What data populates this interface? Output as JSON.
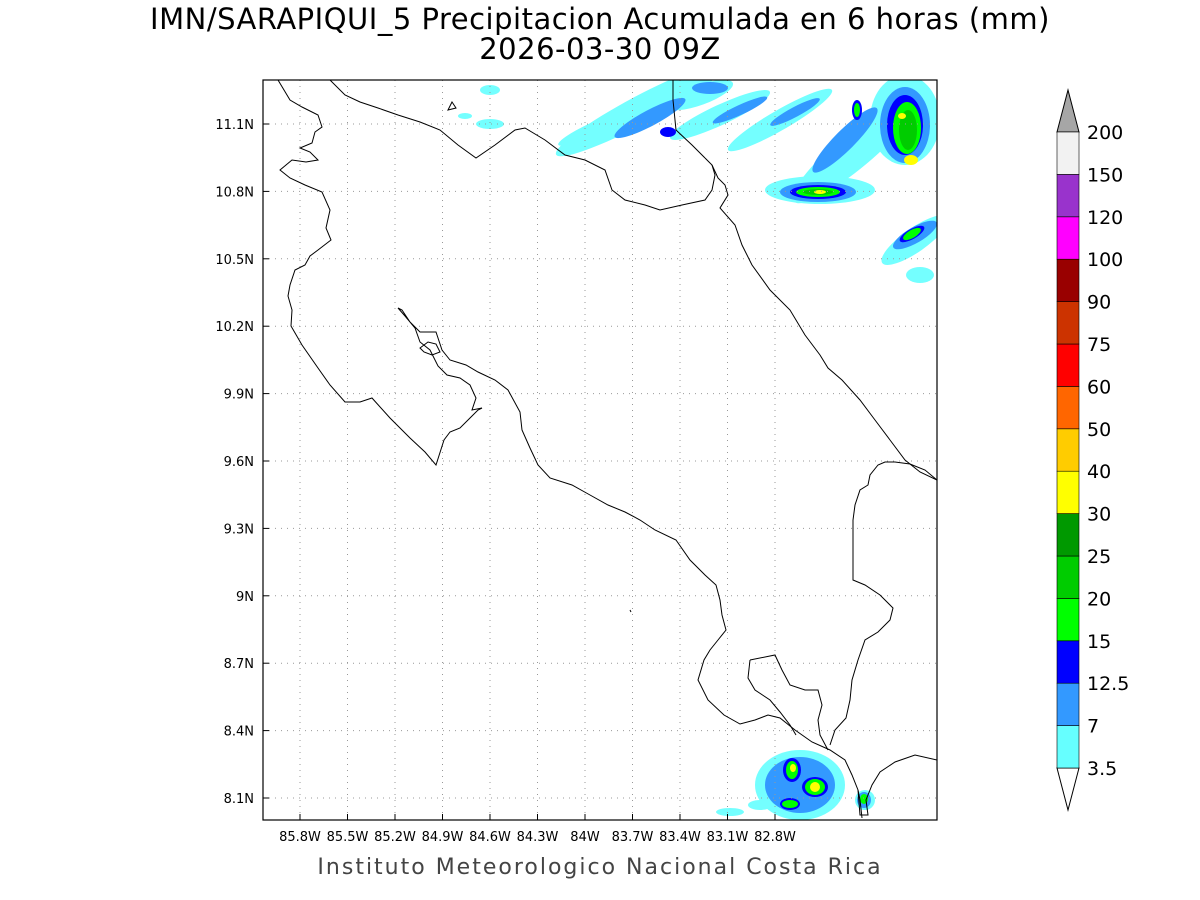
{
  "header": {
    "title": "IMN/SARAPIQUI_5 Precipitacion Acumulada en 6 horas (mm)",
    "datetime": "2026-03-30 09Z"
  },
  "map": {
    "lat_labels": [
      "11.1N",
      "10.8N",
      "10.5N",
      "10.2N",
      "9.9N",
      "9.6N",
      "9.3N",
      "9N",
      "8.7N",
      "8.4N",
      "8.1N"
    ],
    "lon_labels": [
      "85.8W",
      "85.5W",
      "85.2W",
      "84.9W",
      "84.6W",
      "84.3W",
      "84W",
      "83.7W",
      "83.4W",
      "83.1W",
      "82.8W"
    ],
    "grid": "dotted"
  },
  "colorbar": {
    "levels": [
      "3.5",
      "7",
      "12.5",
      "15",
      "20",
      "25",
      "30",
      "40",
      "50",
      "60",
      "75",
      "90",
      "100",
      "120",
      "150",
      "200"
    ],
    "colors": [
      "#66ffff",
      "#3399ff",
      "#0000ff",
      "#00ff00",
      "#00cc00",
      "#009900",
      "#ffff00",
      "#ffcc00",
      "#ff6600",
      "#ff0000",
      "#cc3300",
      "#990000",
      "#ff00ff",
      "#9933cc",
      "#f2f2f2"
    ],
    "top_arrow_color": "#a6a6a6",
    "bottom_arrow_color": "#ffffff"
  },
  "footer": {
    "credit": "Instituto Meteorologico Nacional Costa Rica"
  }
}
